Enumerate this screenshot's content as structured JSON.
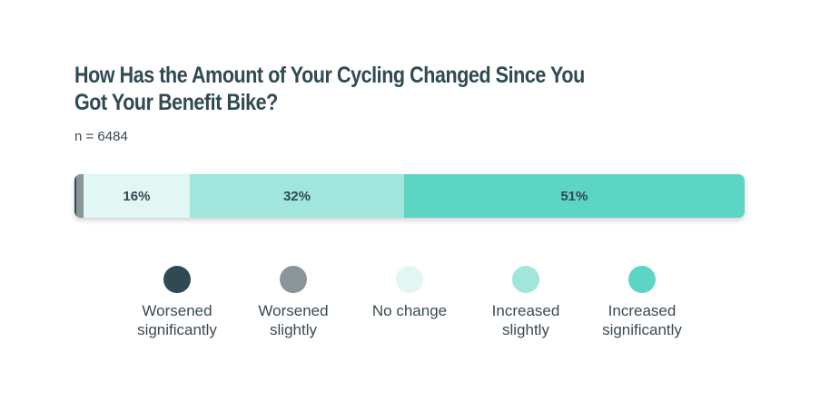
{
  "title": "How Has the Amount of Your Cycling Changed Since You Got Your Benefit Bike?",
  "subtitle": "n = 6484",
  "chart_data": {
    "type": "bar",
    "orientation": "horizontal-stacked-100",
    "categories": [
      "Worsened significantly",
      "Worsened slightly",
      "No change",
      "Increased slightly",
      "Increased significantly"
    ],
    "series": [
      {
        "name": "Worsened significantly",
        "value": 0.3,
        "label": "",
        "color": "#2f4a52"
      },
      {
        "name": "Worsened slightly",
        "value": 1,
        "label": "",
        "color": "#8a9599"
      },
      {
        "name": "No change",
        "value": 16,
        "label": "16%",
        "color": "#e2f6f3"
      },
      {
        "name": "Increased slightly",
        "value": 32,
        "label": "32%",
        "color": "#a0e6dc"
      },
      {
        "name": "Increased significantly",
        "value": 51,
        "label": "51%",
        "color": "#5dd5c4"
      }
    ],
    "unit": "%",
    "legend": {
      "placement": "bottom",
      "items": [
        {
          "line1": "Worsened",
          "line2": "significantly",
          "color": "#2f4a52"
        },
        {
          "line1": "Worsened",
          "line2": "slightly",
          "color": "#8a9599"
        },
        {
          "line1": "No change",
          "line2": "",
          "color": "#e2f6f3"
        },
        {
          "line1": "Increased",
          "line2": "slightly",
          "color": "#a0e6dc"
        },
        {
          "line1": "Increased",
          "line2": "significantly",
          "color": "#5dd5c4"
        }
      ]
    }
  }
}
